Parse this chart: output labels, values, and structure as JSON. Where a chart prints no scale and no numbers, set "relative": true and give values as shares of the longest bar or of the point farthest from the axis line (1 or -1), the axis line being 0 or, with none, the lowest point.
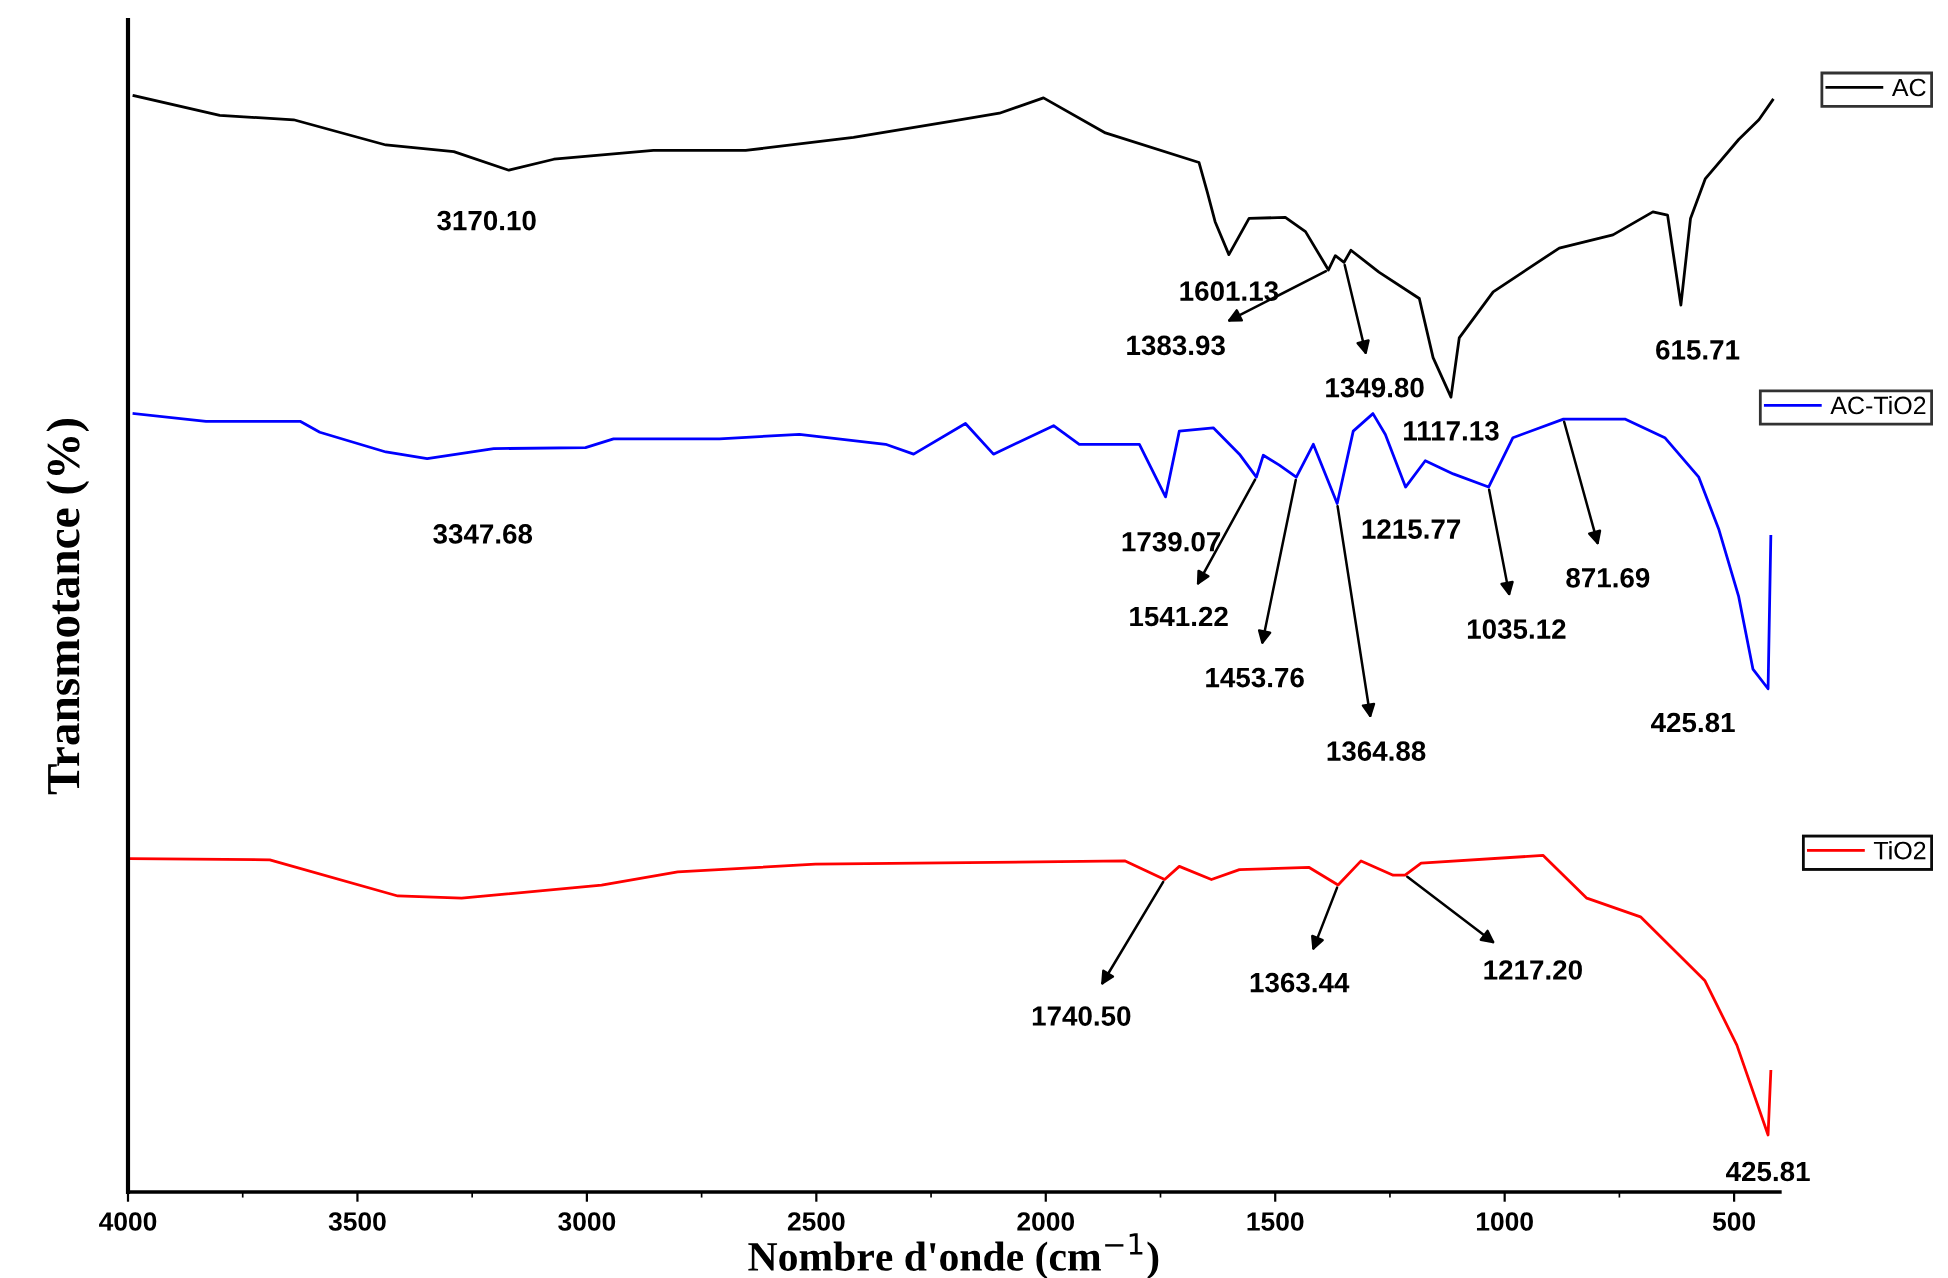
{
  "chart_data": {
    "type": "line",
    "relative": true,
    "xlabel": "Nombre d'onde (cm$^{−1}$)",
    "ylabel": "Transmotance (%)",
    "xlim": [
      4000,
      400
    ],
    "xticks": [
      4000,
      3500,
      3000,
      2500,
      2000,
      1500,
      1000,
      500
    ],
    "grid": false,
    "legend": "right",
    "marker": "none",
    "line_style": "solid",
    "tick_labels": "x",
    "series": [
      {
        "name": "AC",
        "color": "#000000",
        "x": [
          3987,
          3800,
          3639,
          3438,
          3290,
          3170,
          3072,
          2855,
          2654,
          2419,
          2201,
          2101,
          2005,
          1870,
          1666,
          1648,
          1631,
          1601,
          1557,
          1478,
          1434,
          1384,
          1369,
          1350,
          1335,
          1274,
          1186,
          1156,
          1117,
          1099,
          1025,
          881,
          764,
          677,
          645,
          616,
          595,
          563,
          490,
          446,
          416
        ],
        "values": [
          1,
          0.982,
          0.978,
          0.955,
          0.949,
          0.932,
          0.942,
          0.95,
          0.95,
          0.962,
          0.977,
          0.984,
          0.998,
          0.966,
          0.939,
          0.912,
          0.885,
          0.855,
          0.888,
          0.889,
          0.876,
          0.841,
          0.854,
          0.848,
          0.859,
          0.839,
          0.815,
          0.761,
          0.725,
          0.779,
          0.821,
          0.861,
          0.873,
          0.894,
          0.891,
          0.809,
          0.888,
          0.924,
          0.96,
          0.978,
          0.996
        ]
      },
      {
        "name": "AC-TiO2",
        "color": "#0000ff",
        "x": [
          3987,
          3830,
          3625,
          3582,
          3438,
          3348,
          3203,
          3003,
          2942,
          2711,
          2537,
          2349,
          2288,
          2175,
          2114,
          1983,
          1927,
          1796,
          1739,
          1709,
          1635,
          1578,
          1541,
          1526,
          1491,
          1454,
          1417,
          1365,
          1330,
          1287,
          1260,
          1216,
          1173,
          1112,
          1035,
          982,
          872,
          738,
          651,
          577,
          533,
          490,
          459,
          426,
          420
        ],
        "values": [
          0.71,
          0.703,
          0.703,
          0.693,
          0.675,
          0.669,
          0.678,
          0.679,
          0.687,
          0.687,
          0.691,
          0.682,
          0.673,
          0.701,
          0.673,
          0.699,
          0.682,
          0.682,
          0.634,
          0.694,
          0.697,
          0.673,
          0.652,
          0.672,
          0.663,
          0.652,
          0.682,
          0.628,
          0.694,
          0.71,
          0.691,
          0.643,
          0.667,
          0.655,
          0.643,
          0.688,
          0.705,
          0.705,
          0.688,
          0.652,
          0.604,
          0.543,
          0.477,
          0.459,
          0.598
        ]
      },
      {
        "name": "TiO2",
        "color": "#ff0000",
        "x": [
          3996,
          3691,
          3412,
          3273,
          2968,
          2802,
          2502,
          1827,
          1741,
          1709,
          1639,
          1578,
          1426,
          1363,
          1313,
          1243,
          1217,
          1182,
          916,
          821,
          704,
          564,
          494,
          426,
          420
        ],
        "values": [
          0.304,
          0.303,
          0.27,
          0.268,
          0.28,
          0.292,
          0.299,
          0.302,
          0.285,
          0.297,
          0.285,
          0.294,
          0.296,
          0.28,
          0.302,
          0.289,
          0.289,
          0.3,
          0.307,
          0.268,
          0.251,
          0.193,
          0.134,
          0.052,
          0.11
        ]
      }
    ],
    "annotations": [
      {
        "text": "3170.10",
        "x": 3170,
        "y": 0.932
      },
      {
        "text": "1601.13",
        "x": 1601,
        "y": 0.855
      },
      {
        "text": "1383.93",
        "x": 1384,
        "y": 0.841
      },
      {
        "text": "1349.80",
        "x": 1350,
        "y": 0.848
      },
      {
        "text": "1117.13",
        "x": 1117,
        "y": 0.725
      },
      {
        "text": "615.71",
        "x": 616,
        "y": 0.809
      },
      {
        "text": "3347.68",
        "x": 3348,
        "y": 0.669
      },
      {
        "text": "1739.07",
        "x": 1739,
        "y": 0.634
      },
      {
        "text": "1541.22",
        "x": 1541,
        "y": 0.652
      },
      {
        "text": "1453.76",
        "x": 1454,
        "y": 0.652
      },
      {
        "text": "1364.88",
        "x": 1365,
        "y": 0.628
      },
      {
        "text": "1215.77",
        "x": 1216,
        "y": 0.643
      },
      {
        "text": "1035.12",
        "x": 1035,
        "y": 0.643
      },
      {
        "text": "871.69",
        "x": 872,
        "y": 0.705
      },
      {
        "text": "425.81",
        "x": 426,
        "y": 0.459
      },
      {
        "text": "1740.50",
        "x": 1741,
        "y": 0.285
      },
      {
        "text": "1363.44",
        "x": 1363,
        "y": 0.28
      },
      {
        "text": "1217.20",
        "x": 1217,
        "y": 0.289
      },
      {
        "text": "425.81",
        "x": 426,
        "y": 0.052
      }
    ]
  }
}
